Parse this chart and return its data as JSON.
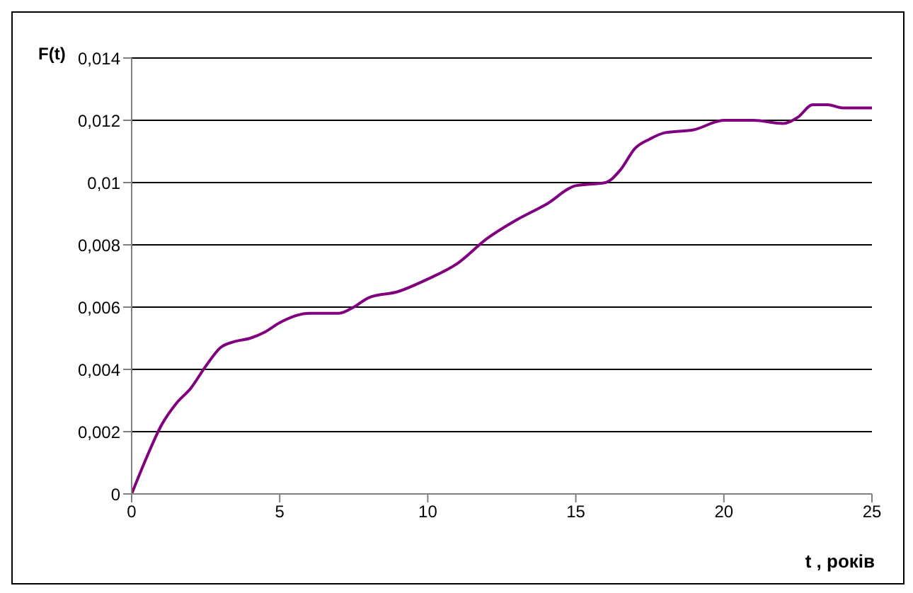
{
  "chart_data": {
    "type": "line",
    "xlabel": "t , років",
    "ylabel": "F(t)",
    "x": [
      0,
      0.5,
      1,
      1.5,
      2,
      2.5,
      3,
      3.5,
      4,
      4.5,
      5,
      6,
      7,
      7.5,
      8,
      9,
      10,
      11,
      12,
      13,
      14,
      15,
      16,
      16.5,
      17,
      17.5,
      18,
      19,
      20,
      21,
      22,
      22.5,
      23,
      23.5,
      24,
      25
    ],
    "series": [
      {
        "color": "#800080",
        "values": [
          0,
          0.00116,
          0.0022,
          0.0029,
          0.0034,
          0.0041,
          0.0047,
          0.0049,
          0.005,
          0.0052,
          0.0055,
          0.0058,
          0.0058,
          0.006,
          0.0063,
          0.0065,
          0.0069,
          0.0074,
          0.0082,
          0.0088,
          0.0093,
          0.0099,
          0.01,
          0.0104,
          0.0111,
          0.0114,
          0.0116,
          0.0117,
          0.012,
          0.012,
          0.0119,
          0.0121,
          0.0125,
          0.0125,
          0.0124,
          0.0124
        ]
      }
    ],
    "xlim": [
      0,
      25
    ],
    "xticks": [
      0,
      5,
      10,
      15,
      20,
      25
    ],
    "ylim": [
      0,
      0.014
    ],
    "yticks": [
      0,
      {
        "value": 0.002,
        "label": "0,002"
      },
      {
        "value": 0.004,
        "label": "0,004"
      },
      {
        "value": 0.006,
        "label": "0,006"
      },
      {
        "value": 0.008,
        "label": "0,008"
      },
      {
        "value": 0.01,
        "label": "0,01"
      },
      {
        "value": 0.012,
        "label": "0,012"
      },
      {
        "value": 0.014,
        "label": "0,014"
      }
    ],
    "grid": "y",
    "marker": "none",
    "line_style": "solid",
    "legend": false
  }
}
